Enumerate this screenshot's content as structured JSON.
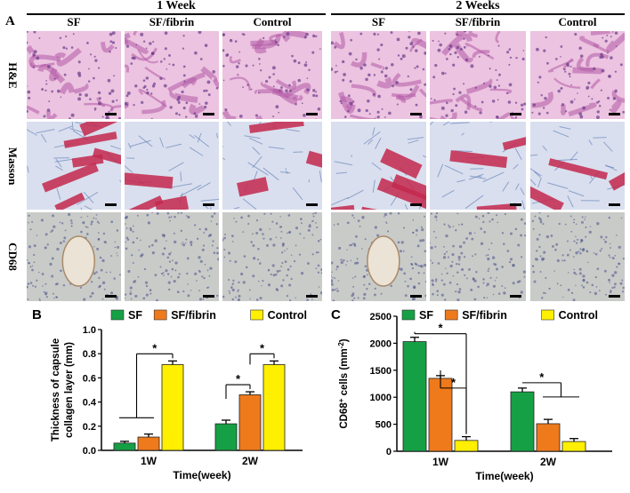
{
  "panel_a": {
    "letter": "A",
    "week_headers": [
      "1 Week",
      "2 Weeks"
    ],
    "columns": [
      "SF",
      "SF/fibrin",
      "Control",
      "SF",
      "SF/fibrin",
      "Control"
    ],
    "rows": [
      "H&E",
      "Masson",
      "CD68"
    ],
    "colors": {
      "he_bg": "#ecc3e0",
      "he_fg": "#b25aa5",
      "masson_bg": "#d9dfee",
      "masson_fg": "#c3284e",
      "masson_blue": "#5a78b4",
      "cd68_bg": "#c9cbc8",
      "cd68_fg": "#47518a"
    }
  },
  "chart_data": [
    {
      "panel_letter": "B",
      "type": "bar",
      "categories": [
        "1W",
        "2W"
      ],
      "xlabel": "Time(week)",
      "ylabel": "Thickness of capsule\ncollagen layer (mm)",
      "ylim": [
        0,
        1.0
      ],
      "yticks": [
        0,
        0.2,
        0.4,
        0.6,
        0.8,
        1.0
      ],
      "ytick_labels": [
        "0.0",
        "0.2",
        "0.4",
        "0.6",
        "0.8",
        "1.0"
      ],
      "legend_position": "top",
      "series": [
        {
          "name": "SF",
          "color": "#16a045",
          "values": [
            0.06,
            0.22
          ],
          "errors": [
            0.015,
            0.03
          ]
        },
        {
          "name": "SF/fibrin",
          "color": "#ee7a1c",
          "values": [
            0.11,
            0.46
          ],
          "errors": [
            0.025,
            0.025
          ]
        },
        {
          "name": "Control",
          "color": "#ffef00",
          "values": [
            0.71,
            0.71
          ],
          "errors": [
            0.03,
            0.03
          ]
        }
      ],
      "significance": [
        {
          "label": "*",
          "group": 0,
          "from_series": [
            0,
            1
          ],
          "to_series": 2
        },
        {
          "label": "*",
          "group": 1,
          "from_series": [
            0
          ],
          "to_series": 1
        },
        {
          "label": "*",
          "group": 1,
          "from_series": [
            1
          ],
          "to_series": 2
        }
      ]
    },
    {
      "panel_letter": "C",
      "type": "bar",
      "categories": [
        "1W",
        "2W"
      ],
      "xlabel": "Time(week)",
      "ylabel": "CD68+ cells (mm -2)",
      "ylabel_parts": {
        "main": "CD68",
        "sup": "+",
        "mid": " cells (mm",
        "sup2": "-2",
        "end": ")"
      },
      "ylim": [
        0,
        2500
      ],
      "yticks": [
        0,
        500,
        1000,
        1500,
        2000,
        2500
      ],
      "ytick_labels": [
        "0",
        "500",
        "1000",
        "1500",
        "2000",
        "2500"
      ],
      "legend_position": "top",
      "series": [
        {
          "name": "SF",
          "color": "#16a045",
          "values": [
            2030,
            1100
          ],
          "errors": [
            80,
            70
          ]
        },
        {
          "name": "SF/fibrin",
          "color": "#ee7a1c",
          "values": [
            1350,
            510
          ],
          "errors": [
            50,
            80
          ]
        },
        {
          "name": "Control",
          "color": "#ffef00",
          "values": [
            200,
            180
          ],
          "errors": [
            70,
            55
          ]
        }
      ],
      "significance": [
        {
          "label": "*",
          "group": 0,
          "from_series": [
            0
          ],
          "to_series": 2
        },
        {
          "label": "*",
          "group": 0,
          "from_series": [
            1
          ],
          "to_series": 2
        },
        {
          "label": "*",
          "group": 1,
          "from_series": [
            0
          ],
          "to_series": [
            1,
            2
          ]
        }
      ]
    }
  ]
}
